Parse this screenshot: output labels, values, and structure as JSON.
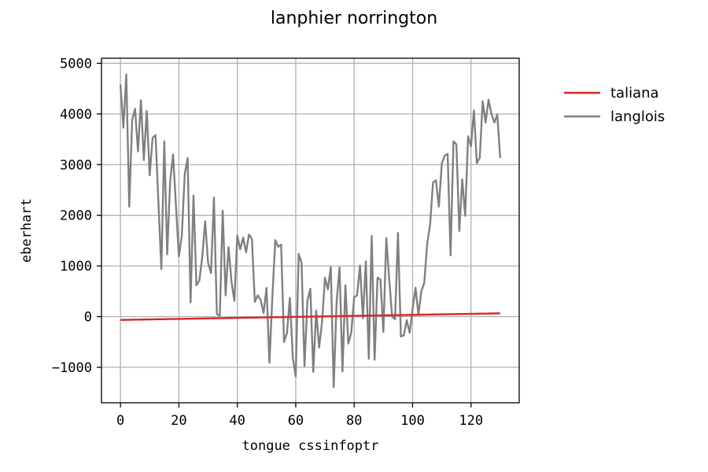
{
  "chart_data": {
    "type": "line",
    "title": "lanphier norrington",
    "xlabel": "tongue cssinfoptr",
    "ylabel": "eberhart",
    "xlim": [
      -6.5,
      136.5
    ],
    "ylim": [
      -1700,
      5100
    ],
    "xticks": [
      0,
      20,
      40,
      60,
      80,
      100,
      120
    ],
    "yticks": [
      -1000,
      0,
      1000,
      2000,
      3000,
      4000,
      5000
    ],
    "xtick_labels": [
      "0",
      "20",
      "40",
      "60",
      "80",
      "100",
      "120"
    ],
    "ytick_labels": [
      "−1000",
      "0",
      "1000",
      "2000",
      "3000",
      "4000",
      "5000"
    ],
    "grid": true,
    "legend_position": "outside-right-top",
    "x": [
      0,
      1,
      2,
      3,
      4,
      5,
      6,
      7,
      8,
      9,
      10,
      11,
      12,
      13,
      14,
      15,
      16,
      17,
      18,
      19,
      20,
      21,
      22,
      23,
      24,
      25,
      26,
      27,
      28,
      29,
      30,
      31,
      32,
      33,
      34,
      35,
      36,
      37,
      38,
      39,
      40,
      41,
      42,
      43,
      44,
      45,
      46,
      47,
      48,
      49,
      50,
      51,
      52,
      53,
      54,
      55,
      56,
      57,
      58,
      59,
      60,
      61,
      62,
      63,
      64,
      65,
      66,
      67,
      68,
      69,
      70,
      71,
      72,
      73,
      74,
      75,
      76,
      77,
      78,
      79,
      80,
      81,
      82,
      83,
      84,
      85,
      86,
      87,
      88,
      89,
      90,
      91,
      92,
      93,
      94,
      95,
      96,
      97,
      98,
      99,
      100,
      101,
      102,
      103,
      104,
      105,
      106,
      107,
      108,
      109,
      110,
      111,
      112,
      113,
      114,
      115,
      116,
      117,
      118,
      119,
      120,
      121,
      122,
      123,
      124,
      125,
      126,
      127,
      128,
      129,
      130
    ],
    "series": [
      {
        "name": "taliana",
        "color": "#d62728",
        "values": [
          -65,
          -64,
          -63,
          -62,
          -61,
          -60,
          -59,
          -58,
          -57,
          -56,
          -55,
          -54,
          -53,
          -52,
          -51,
          -50,
          -49,
          -48,
          -47,
          -46,
          -45,
          -44,
          -43,
          -42,
          -41,
          -40,
          -39,
          -38,
          -37,
          -36,
          -35,
          -34,
          -33,
          -32,
          -31,
          -30,
          -29,
          -28,
          -27,
          -26,
          -25,
          -24,
          -23,
          -22,
          -21,
          -20,
          -19,
          -18,
          -17,
          -16,
          -15,
          -14,
          -13,
          -12,
          -11,
          -10,
          -9,
          -8,
          -7,
          -6,
          -5,
          -4,
          -3,
          -2,
          -1,
          0,
          1,
          2,
          3,
          4,
          5,
          6,
          7,
          8,
          9,
          10,
          11,
          12,
          13,
          14,
          15,
          16,
          17,
          18,
          19,
          20,
          21,
          22,
          23,
          24,
          25,
          26,
          27,
          28,
          29,
          30,
          31,
          32,
          33,
          34,
          35,
          36,
          37,
          38,
          39,
          40,
          41,
          42,
          43,
          44,
          45,
          46,
          47,
          48,
          49,
          50,
          51,
          52,
          53,
          54,
          55,
          56,
          57,
          58,
          59,
          60,
          61,
          62,
          63,
          64,
          65
        ]
      },
      {
        "name": "langlois",
        "color": "#808080",
        "values": [
          4580,
          3730,
          4780,
          2170,
          3880,
          4100,
          3260,
          4270,
          3090,
          4060,
          2790,
          3530,
          3580,
          2250,
          940,
          3460,
          1230,
          2660,
          3200,
          2180,
          1190,
          1600,
          2810,
          3130,
          280,
          2390,
          620,
          710,
          1180,
          1880,
          1060,
          860,
          2350,
          50,
          20,
          2090,
          420,
          1370,
          690,
          310,
          1600,
          1330,
          1560,
          1270,
          1620,
          1530,
          290,
          420,
          330,
          70,
          570,
          -910,
          390,
          1510,
          1380,
          1420,
          -500,
          -320,
          370,
          -810,
          -1180,
          1240,
          1060,
          -980,
          310,
          550,
          -1090,
          120,
          -610,
          -120,
          770,
          540,
          980,
          -1390,
          300,
          970,
          -1080,
          620,
          -530,
          -320,
          380,
          420,
          1010,
          -30,
          1090,
          -830,
          1590,
          -850,
          770,
          730,
          -300,
          1550,
          740,
          0,
          -50,
          1650,
          -390,
          -370,
          -70,
          -320,
          150,
          570,
          40,
          500,
          670,
          1440,
          1820,
          2650,
          2690,
          2170,
          3020,
          3180,
          3210,
          1210,
          3460,
          3400,
          1690,
          2710,
          1990,
          3560,
          3360,
          4070,
          3030,
          3140,
          4250,
          3830,
          4280,
          4000,
          3830,
          3990,
          3130
        ]
      }
    ]
  }
}
